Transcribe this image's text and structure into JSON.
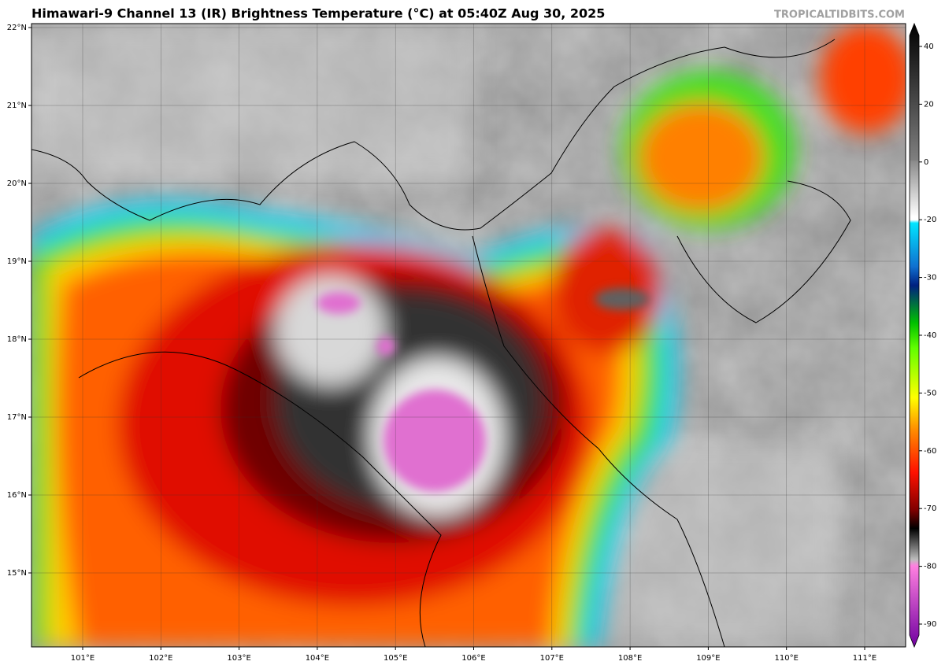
{
  "header": {
    "title": "Himawari-9 Channel 13 (IR) Brightness Temperature (°C) at 05:40Z Aug 30, 2025",
    "credit": "TROPICALTIDBITS.COM"
  },
  "map": {
    "lat_labels": [
      "22°N",
      "21°N",
      "20°N",
      "19°N",
      "18°N",
      "17°N",
      "16°N",
      "15°N"
    ],
    "lon_labels": [
      "101°E",
      "102°E",
      "103°E",
      "104°E",
      "105°E",
      "106°E",
      "107°E",
      "108°E",
      "109°E",
      "110°E",
      "111°E"
    ]
  },
  "colorbar": {
    "ticks": [
      40,
      20,
      0,
      -20,
      -30,
      -40,
      -50,
      -60,
      -70,
      -80,
      -90
    ]
  }
}
